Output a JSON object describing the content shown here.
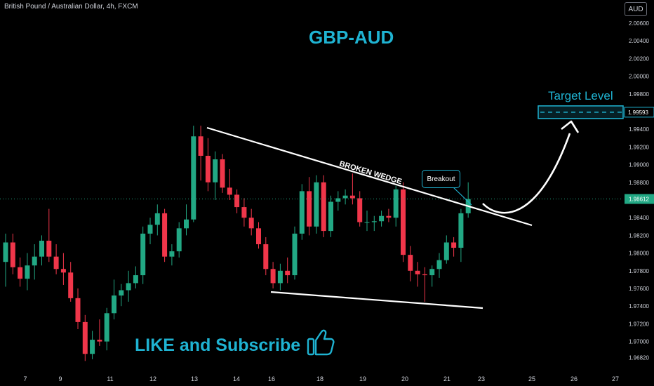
{
  "header": {
    "symbol": "British Pound / Australian Dollar, 4h, FXCM",
    "currency": "AUD"
  },
  "annotations": {
    "title": "GBP-AUD",
    "wedge_label": "BROKEN WEDGE",
    "breakout": "Breakout",
    "target": "Target Level",
    "cta": "LIKE and Subscribe"
  },
  "colors": {
    "background": "#000000",
    "bull": "#22a884",
    "bear": "#f0364a",
    "accent": "#1fb3d2",
    "axis_text": "#d1d4dc",
    "trendline": "#ffffff"
  },
  "icons": {
    "like": "thumbs-up-icon",
    "arrow": "curved-arrow-icon"
  },
  "chart_data": {
    "type": "candlestick",
    "price_ticks": [
      "2.00600",
      "2.00400",
      "2.00200",
      "2.00000",
      "1.99800",
      "1.99600",
      "1.99400",
      "1.99200",
      "1.99000",
      "1.98800",
      "1.98600",
      "1.98400",
      "1.98200",
      "1.98000",
      "1.97800",
      "1.97600",
      "1.97400",
      "1.97200",
      "1.97000",
      "1.96820"
    ],
    "date_ticks": [
      "7",
      "9",
      "11",
      "12",
      "13",
      "14",
      "16",
      "18",
      "19",
      "20",
      "21",
      "23",
      "25",
      "26",
      "27"
    ],
    "current_price": "1.98612",
    "target_price": "1.99593",
    "ylim": [
      1.968,
      2.007
    ],
    "candles": [
      {
        "o": 1.979,
        "h": 1.9822,
        "l": 1.9762,
        "c": 1.9812
      },
      {
        "o": 1.9812,
        "h": 1.9822,
        "l": 1.9776,
        "c": 1.9784
      },
      {
        "o": 1.9784,
        "h": 1.9795,
        "l": 1.9762,
        "c": 1.9771
      },
      {
        "o": 1.9771,
        "h": 1.98,
        "l": 1.9758,
        "c": 1.9786
      },
      {
        "o": 1.9786,
        "h": 1.981,
        "l": 1.977,
        "c": 1.9796
      },
      {
        "o": 1.9796,
        "h": 1.982,
        "l": 1.9786,
        "c": 1.9814
      },
      {
        "o": 1.9814,
        "h": 1.985,
        "l": 1.979,
        "c": 1.9796
      },
      {
        "o": 1.9796,
        "h": 1.981,
        "l": 1.9776,
        "c": 1.9782
      },
      {
        "o": 1.9782,
        "h": 1.98,
        "l": 1.9764,
        "c": 1.9778
      },
      {
        "o": 1.9778,
        "h": 1.979,
        "l": 1.9745,
        "c": 1.9749
      },
      {
        "o": 1.9749,
        "h": 1.976,
        "l": 1.9714,
        "c": 1.9722
      },
      {
        "o": 1.9722,
        "h": 1.973,
        "l": 1.9678,
        "c": 1.9686
      },
      {
        "o": 1.9686,
        "h": 1.9712,
        "l": 1.968,
        "c": 1.9702
      },
      {
        "o": 1.9702,
        "h": 1.9725,
        "l": 1.9695,
        "c": 1.97
      },
      {
        "o": 1.97,
        "h": 1.9738,
        "l": 1.969,
        "c": 1.9732
      },
      {
        "o": 1.9732,
        "h": 1.977,
        "l": 1.9725,
        "c": 1.9752
      },
      {
        "o": 1.9752,
        "h": 1.9765,
        "l": 1.974,
        "c": 1.9758
      },
      {
        "o": 1.9758,
        "h": 1.978,
        "l": 1.9745,
        "c": 1.9766
      },
      {
        "o": 1.9766,
        "h": 1.9785,
        "l": 1.976,
        "c": 1.9775
      },
      {
        "o": 1.9775,
        "h": 1.983,
        "l": 1.9765,
        "c": 1.9822
      },
      {
        "o": 1.9822,
        "h": 1.984,
        "l": 1.981,
        "c": 1.9832
      },
      {
        "o": 1.9832,
        "h": 1.9855,
        "l": 1.982,
        "c": 1.9845
      },
      {
        "o": 1.9845,
        "h": 1.985,
        "l": 1.979,
        "c": 1.9796
      },
      {
        "o": 1.9796,
        "h": 1.981,
        "l": 1.9786,
        "c": 1.9802
      },
      {
        "o": 1.9802,
        "h": 1.9835,
        "l": 1.9795,
        "c": 1.9828
      },
      {
        "o": 1.9828,
        "h": 1.9855,
        "l": 1.982,
        "c": 1.9838
      },
      {
        "o": 1.9838,
        "h": 1.9944,
        "l": 1.9835,
        "c": 1.9932
      },
      {
        "o": 1.9932,
        "h": 1.9944,
        "l": 1.9882,
        "c": 1.991
      },
      {
        "o": 1.991,
        "h": 1.993,
        "l": 1.987,
        "c": 1.988
      },
      {
        "o": 1.988,
        "h": 1.9915,
        "l": 1.986,
        "c": 1.9906
      },
      {
        "o": 1.9906,
        "h": 1.9912,
        "l": 1.9868,
        "c": 1.9874
      },
      {
        "o": 1.9874,
        "h": 1.9895,
        "l": 1.986,
        "c": 1.9866
      },
      {
        "o": 1.9866,
        "h": 1.9872,
        "l": 1.9845,
        "c": 1.9852
      },
      {
        "o": 1.9852,
        "h": 1.9862,
        "l": 1.983,
        "c": 1.984
      },
      {
        "o": 1.984,
        "h": 1.985,
        "l": 1.982,
        "c": 1.9828
      },
      {
        "o": 1.9828,
        "h": 1.9835,
        "l": 1.9805,
        "c": 1.981
      },
      {
        "o": 1.981,
        "h": 1.9818,
        "l": 1.9775,
        "c": 1.9782
      },
      {
        "o": 1.9782,
        "h": 1.979,
        "l": 1.976,
        "c": 1.9766
      },
      {
        "o": 1.9766,
        "h": 1.9788,
        "l": 1.9758,
        "c": 1.978
      },
      {
        "o": 1.978,
        "h": 1.9795,
        "l": 1.9766,
        "c": 1.9775
      },
      {
        "o": 1.9775,
        "h": 1.983,
        "l": 1.977,
        "c": 1.9822
      },
      {
        "o": 1.9822,
        "h": 1.9878,
        "l": 1.9815,
        "c": 1.987
      },
      {
        "o": 1.987,
        "h": 1.9886,
        "l": 1.982,
        "c": 1.983
      },
      {
        "o": 1.983,
        "h": 1.9888,
        "l": 1.9822,
        "c": 1.988
      },
      {
        "o": 1.988,
        "h": 1.9888,
        "l": 1.9818,
        "c": 1.9825
      },
      {
        "o": 1.9825,
        "h": 1.9865,
        "l": 1.9818,
        "c": 1.9858
      },
      {
        "o": 1.9858,
        "h": 1.987,
        "l": 1.9848,
        "c": 1.9862
      },
      {
        "o": 1.9862,
        "h": 1.9872,
        "l": 1.9855,
        "c": 1.9865
      },
      {
        "o": 1.9865,
        "h": 1.989,
        "l": 1.9855,
        "c": 1.9862
      },
      {
        "o": 1.9862,
        "h": 1.987,
        "l": 1.983,
        "c": 1.9835
      },
      {
        "o": 1.9835,
        "h": 1.9848,
        "l": 1.9825,
        "c": 1.9835
      },
      {
        "o": 1.9835,
        "h": 1.9842,
        "l": 1.9825,
        "c": 1.9836
      },
      {
        "o": 1.9836,
        "h": 1.9848,
        "l": 1.983,
        "c": 1.9842
      },
      {
        "o": 1.9842,
        "h": 1.985,
        "l": 1.9835,
        "c": 1.984
      },
      {
        "o": 1.984,
        "h": 1.9876,
        "l": 1.983,
        "c": 1.9872
      },
      {
        "o": 1.9872,
        "h": 1.988,
        "l": 1.979,
        "c": 1.9798
      },
      {
        "o": 1.9798,
        "h": 1.9808,
        "l": 1.9768,
        "c": 1.978
      },
      {
        "o": 1.978,
        "h": 1.979,
        "l": 1.9762,
        "c": 1.9776
      },
      {
        "o": 1.9776,
        "h": 1.9784,
        "l": 1.9745,
        "c": 1.9775
      },
      {
        "o": 1.9775,
        "h": 1.9786,
        "l": 1.9762,
        "c": 1.9782
      },
      {
        "o": 1.9782,
        "h": 1.98,
        "l": 1.9772,
        "c": 1.9792
      },
      {
        "o": 1.9792,
        "h": 1.982,
        "l": 1.9788,
        "c": 1.9812
      },
      {
        "o": 1.9812,
        "h": 1.9818,
        "l": 1.9796,
        "c": 1.9806
      },
      {
        "o": 1.9806,
        "h": 1.985,
        "l": 1.979,
        "c": 1.9845
      },
      {
        "o": 1.9845,
        "h": 1.988,
        "l": 1.984,
        "c": 1.9861
      }
    ]
  }
}
